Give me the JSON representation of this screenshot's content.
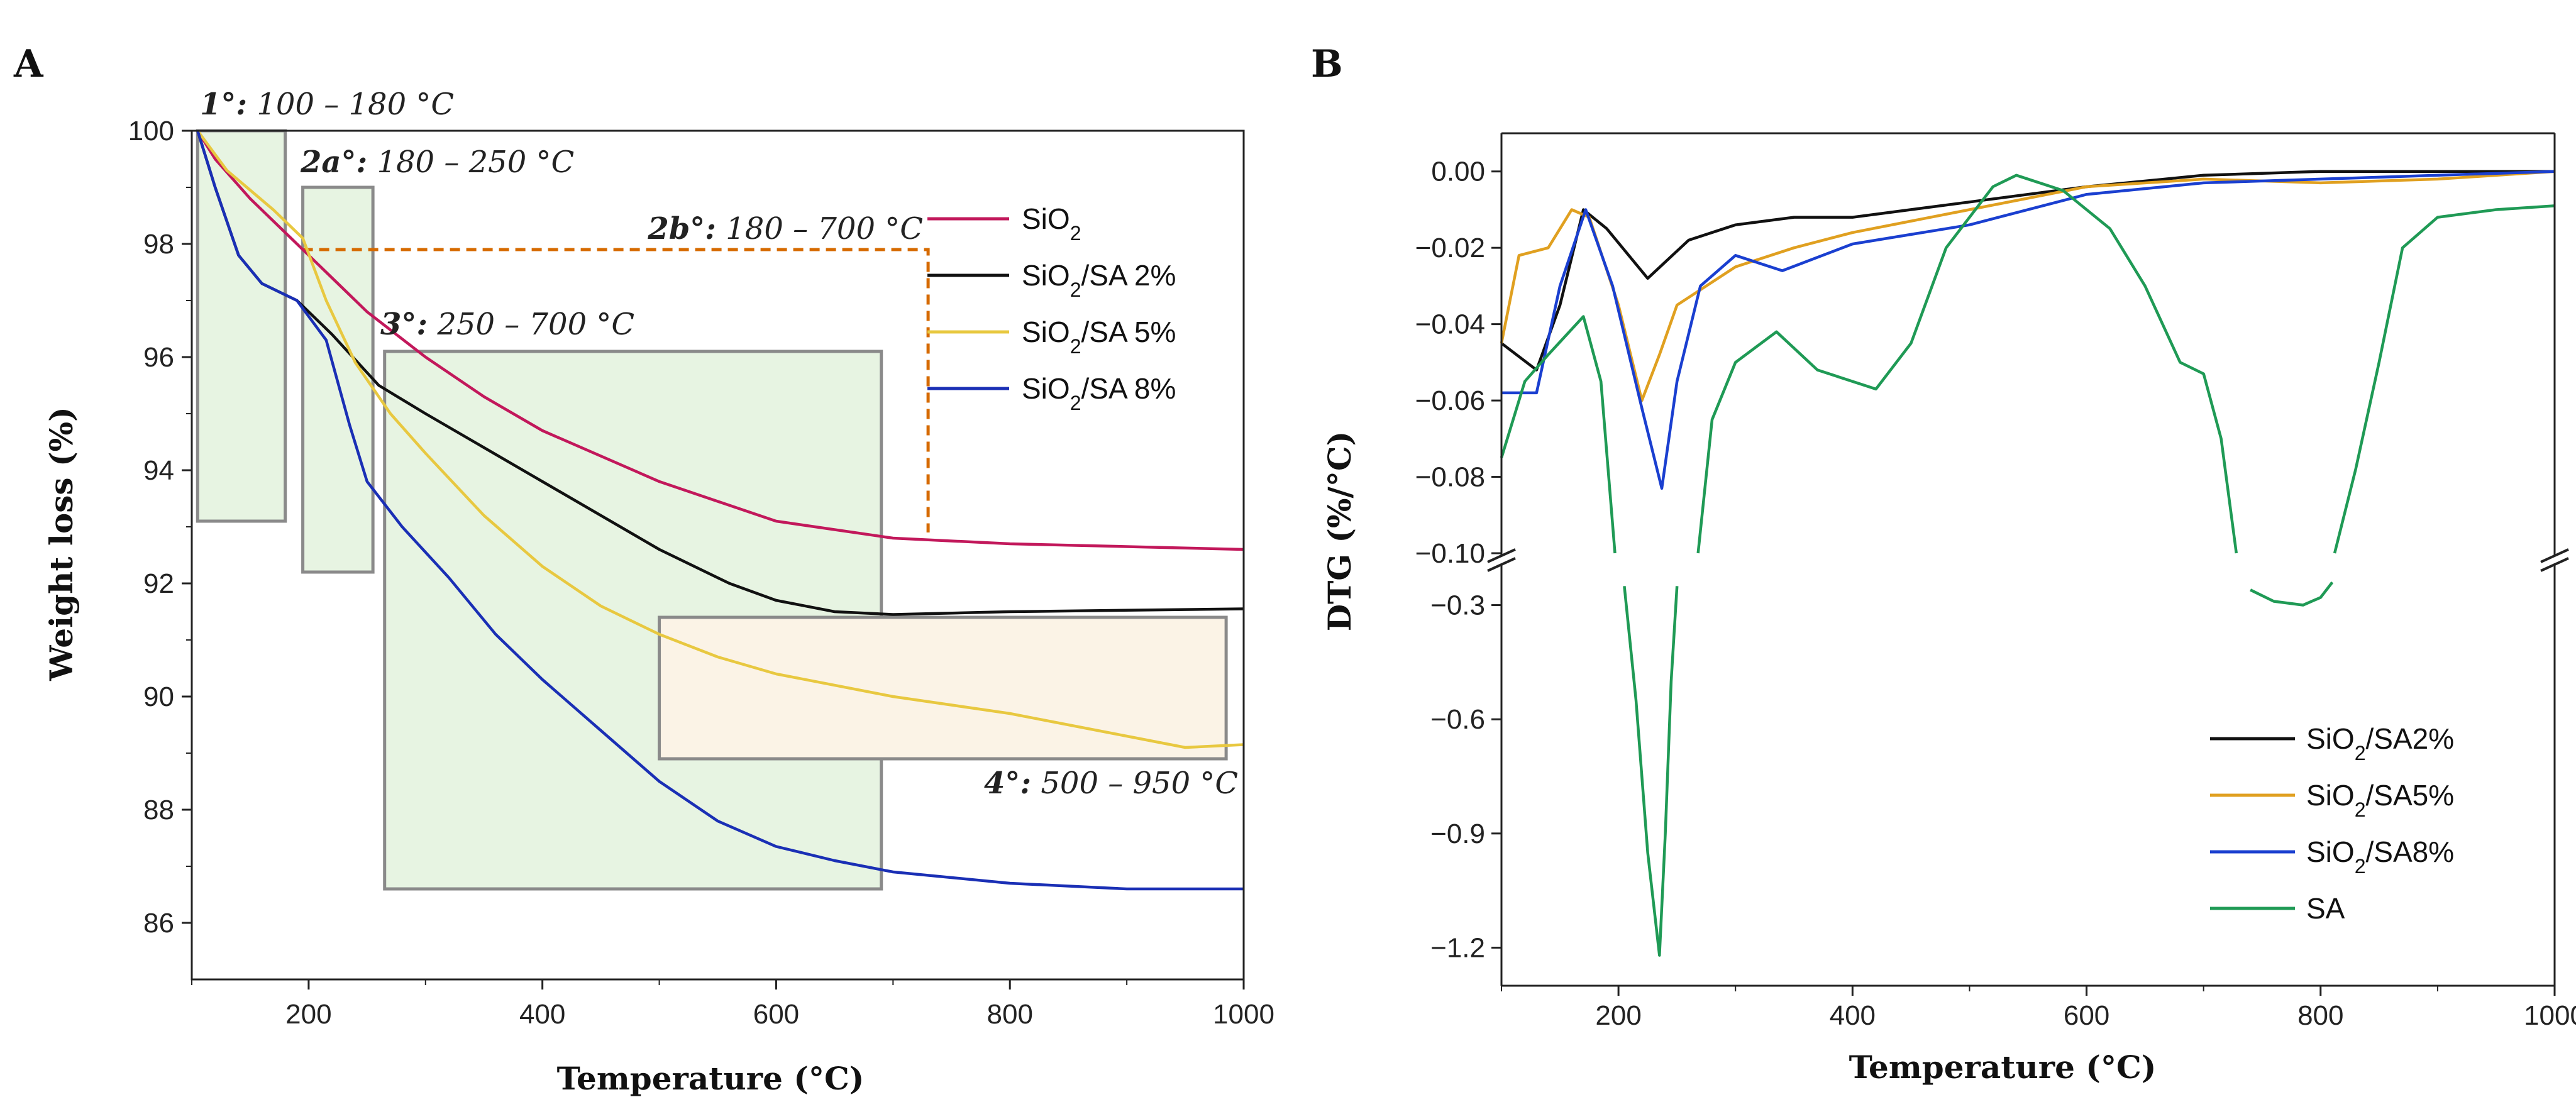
{
  "chart_data": [
    {
      "panel": "A",
      "type": "line",
      "xlabel": "Temperature (°C)",
      "ylabel": "Weight loss (%)",
      "xlim": [
        100,
        1000
      ],
      "ylim": [
        85,
        100
      ],
      "xticks": [
        200,
        400,
        600,
        800,
        1000
      ],
      "yticks": [
        86,
        88,
        90,
        92,
        94,
        96,
        98,
        100
      ],
      "series": [
        {
          "name": "SiO2",
          "legend_main": "SiO",
          "legend_sub": "2",
          "legend_tail": "",
          "color": "#c2185b",
          "points": [
            [
              105,
              100
            ],
            [
              120,
              99.5
            ],
            [
              150,
              98.8
            ],
            [
              200,
              97.8
            ],
            [
              250,
              96.8
            ],
            [
              300,
              96.0
            ],
            [
              350,
              95.3
            ],
            [
              400,
              94.7
            ],
            [
              500,
              93.8
            ],
            [
              600,
              93.1
            ],
            [
              700,
              92.8
            ],
            [
              800,
              92.7
            ],
            [
              900,
              92.65
            ],
            [
              1000,
              92.6
            ]
          ]
        },
        {
          "name": "SiO2/SA 2%",
          "legend_main": "SiO",
          "legend_sub": "2",
          "legend_tail": "/SA 2%",
          "color": "#111111",
          "points": [
            [
              105,
              100
            ],
            [
              120,
              99.0
            ],
            [
              140,
              97.8
            ],
            [
              160,
              97.3
            ],
            [
              190,
              97.0
            ],
            [
              220,
              96.4
            ],
            [
              260,
              95.5
            ],
            [
              300,
              95.0
            ],
            [
              400,
              93.8
            ],
            [
              500,
              92.6
            ],
            [
              560,
              92.0
            ],
            [
              600,
              91.7
            ],
            [
              650,
              91.5
            ],
            [
              700,
              91.45
            ],
            [
              800,
              91.5
            ],
            [
              1000,
              91.55
            ]
          ]
        },
        {
          "name": "SiO2/SA 5%",
          "legend_main": "SiO",
          "legend_sub": "2",
          "legend_tail": "/SA 5%",
          "color": "#e8c840",
          "points": [
            [
              105,
              100
            ],
            [
              130,
              99.3
            ],
            [
              170,
              98.6
            ],
            [
              195,
              98.1
            ],
            [
              215,
              97.0
            ],
            [
              240,
              95.9
            ],
            [
              270,
              95.0
            ],
            [
              300,
              94.3
            ],
            [
              350,
              93.2
            ],
            [
              400,
              92.3
            ],
            [
              450,
              91.6
            ],
            [
              500,
              91.1
            ],
            [
              550,
              90.7
            ],
            [
              600,
              90.4
            ],
            [
              700,
              90.0
            ],
            [
              800,
              89.7
            ],
            [
              900,
              89.3
            ],
            [
              950,
              89.1
            ],
            [
              1000,
              89.15
            ]
          ]
        },
        {
          "name": "SiO2/SA 8%",
          "legend_main": "SiO",
          "legend_sub": "2",
          "legend_tail": "/SA 8%",
          "color": "#1a2fb5",
          "points": [
            [
              105,
              100
            ],
            [
              120,
              99.0
            ],
            [
              140,
              97.8
            ],
            [
              160,
              97.3
            ],
            [
              190,
              97.0
            ],
            [
              215,
              96.3
            ],
            [
              235,
              94.8
            ],
            [
              250,
              93.8
            ],
            [
              280,
              93.0
            ],
            [
              320,
              92.1
            ],
            [
              360,
              91.1
            ],
            [
              400,
              90.3
            ],
            [
              450,
              89.4
            ],
            [
              500,
              88.5
            ],
            [
              550,
              87.8
            ],
            [
              600,
              87.35
            ],
            [
              650,
              87.1
            ],
            [
              700,
              86.9
            ],
            [
              800,
              86.7
            ],
            [
              900,
              86.6
            ],
            [
              1000,
              86.6
            ]
          ]
        }
      ],
      "regions": [
        {
          "name": "stage-1",
          "label_main": "1°:",
          "label_rest": " 100 – 180 °C",
          "x": [
            105,
            180
          ],
          "y": [
            93.1,
            100
          ],
          "fill": "#e7f4e2"
        },
        {
          "name": "stage-2a",
          "label_main": "2a°:",
          "label_rest": " 180 – 250 °C",
          "x": [
            195,
            255
          ],
          "y": [
            92.2,
            99.0
          ],
          "fill": "#e7f4e2"
        },
        {
          "name": "stage-3",
          "label_main": "3°:",
          "label_rest": " 250 – 700 °C",
          "x": [
            265,
            690
          ],
          "y": [
            86.6,
            96.1
          ],
          "fill": "#e7f4e2"
        },
        {
          "name": "stage-4",
          "label_main": "4°:",
          "label_rest": " 500 – 950 °C",
          "x": [
            500,
            985
          ],
          "y": [
            88.9,
            91.4
          ],
          "fill": "#fbf3e6"
        }
      ],
      "dashed_region": {
        "label_main": "2b°:",
        "label_rest": " 180 – 700 °C",
        "x": [
          195,
          730
        ],
        "y_top": 97.9,
        "y_bottom": 92.9,
        "color": "#d66a00"
      }
    },
    {
      "panel": "B",
      "type": "line",
      "xlabel": "Temperature (°C)",
      "ylabel": "DTG (%/°C)",
      "xlim": [
        100,
        1000
      ],
      "xticks": [
        200,
        400,
        600,
        800,
        1000
      ],
      "upper_yticks": [
        "0.00",
        "−0.02",
        "−0.04",
        "−0.06",
        "−0.08",
        "−0.10"
      ],
      "lower_yticks": [
        "−0.3",
        "−0.6",
        "−0.9",
        "−1.2"
      ],
      "upper_ylim": [
        -0.1,
        0.01
      ],
      "lower_ylim": [
        -1.3,
        -0.2
      ],
      "series": [
        {
          "name": "SiO2/SA2%",
          "legend_main": "SiO",
          "legend_sub": "2",
          "legend_tail": "/SA2%",
          "color": "#111111",
          "points": [
            [
              100,
              -0.045
            ],
            [
              130,
              -0.052
            ],
            [
              150,
              -0.035
            ],
            [
              170,
              -0.01
            ],
            [
              190,
              -0.015
            ],
            [
              225,
              -0.028
            ],
            [
              260,
              -0.018
            ],
            [
              300,
              -0.014
            ],
            [
              350,
              -0.012
            ],
            [
              400,
              -0.012
            ],
            [
              500,
              -0.008
            ],
            [
              600,
              -0.004
            ],
            [
              700,
              -0.001
            ],
            [
              800,
              0.0
            ],
            [
              900,
              0.0
            ],
            [
              1000,
              0.0
            ]
          ]
        },
        {
          "name": "SiO2/SA5%",
          "legend_main": "SiO",
          "legend_sub": "2",
          "legend_tail": "/SA5%",
          "color": "#e0a020",
          "points": [
            [
              100,
              -0.045
            ],
            [
              115,
              -0.022
            ],
            [
              140,
              -0.02
            ],
            [
              160,
              -0.01
            ],
            [
              175,
              -0.012
            ],
            [
              200,
              -0.035
            ],
            [
              220,
              -0.06
            ],
            [
              235,
              -0.048
            ],
            [
              250,
              -0.035
            ],
            [
              300,
              -0.025
            ],
            [
              350,
              -0.02
            ],
            [
              400,
              -0.016
            ],
            [
              500,
              -0.01
            ],
            [
              600,
              -0.004
            ],
            [
              700,
              -0.002
            ],
            [
              800,
              -0.003
            ],
            [
              900,
              -0.002
            ],
            [
              1000,
              0.0
            ]
          ]
        },
        {
          "name": "SiO2/SA8%",
          "legend_main": "SiO",
          "legend_sub": "2",
          "legend_tail": "/SA8%",
          "color": "#1a3fd0",
          "points": [
            [
              100,
              -0.058
            ],
            [
              130,
              -0.058
            ],
            [
              150,
              -0.03
            ],
            [
              172,
              -0.01
            ],
            [
              195,
              -0.03
            ],
            [
              220,
              -0.062
            ],
            [
              237,
              -0.083
            ],
            [
              250,
              -0.055
            ],
            [
              270,
              -0.03
            ],
            [
              300,
              -0.022
            ],
            [
              340,
              -0.026
            ],
            [
              400,
              -0.019
            ],
            [
              500,
              -0.014
            ],
            [
              600,
              -0.006
            ],
            [
              700,
              -0.003
            ],
            [
              800,
              -0.002
            ],
            [
              900,
              -0.001
            ],
            [
              1000,
              0.0
            ]
          ]
        },
        {
          "name": "SA",
          "legend_main": "SA",
          "legend_sub": "",
          "legend_tail": "",
          "color": "#1f9a55",
          "upper_segments": [
            [
              [
                100,
                -0.075
              ],
              [
                120,
                -0.055
              ],
              [
                140,
                -0.048
              ],
              [
                170,
                -0.038
              ],
              [
                185,
                -0.055
              ],
              [
                197,
                -0.1
              ]
            ],
            [
              [
                268,
                -0.1
              ],
              [
                280,
                -0.065
              ],
              [
                300,
                -0.05
              ],
              [
                335,
                -0.042
              ],
              [
                370,
                -0.052
              ],
              [
                420,
                -0.057
              ],
              [
                450,
                -0.045
              ],
              [
                480,
                -0.02
              ],
              [
                520,
                -0.004
              ],
              [
                540,
                -0.001
              ],
              [
                580,
                -0.005
              ],
              [
                620,
                -0.015
              ],
              [
                650,
                -0.03
              ],
              [
                680,
                -0.05
              ],
              [
                700,
                -0.053
              ],
              [
                715,
                -0.07
              ],
              [
                728,
                -0.1
              ]
            ],
            [
              [
                812,
                -0.1
              ],
              [
                830,
                -0.078
              ],
              [
                850,
                -0.05
              ],
              [
                870,
                -0.02
              ],
              [
                900,
                -0.012
              ],
              [
                950,
                -0.01
              ],
              [
                1000,
                -0.009
              ]
            ]
          ],
          "lower_segments": [
            [
              [
                205,
                -0.25
              ],
              [
                215,
                -0.55
              ],
              [
                225,
                -0.95
              ],
              [
                235,
                -1.22
              ],
              [
                240,
                -0.9
              ],
              [
                245,
                -0.5
              ],
              [
                250,
                -0.25
              ]
            ],
            [
              [
                740,
                -0.26
              ],
              [
                760,
                -0.29
              ],
              [
                785,
                -0.3
              ],
              [
                800,
                -0.28
              ],
              [
                810,
                -0.24
              ]
            ]
          ]
        }
      ]
    }
  ]
}
